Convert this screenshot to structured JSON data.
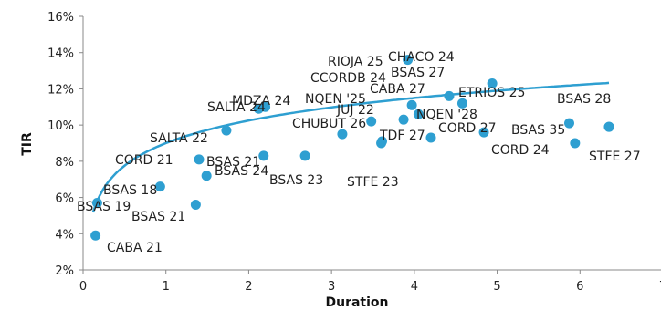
{
  "chart_data": {
    "type": "scatter",
    "title": "",
    "xlabel": "Duration",
    "ylabel": "TIR",
    "xlim": [
      0,
      7
    ],
    "ylim": [
      2,
      16
    ],
    "xticks": [
      0,
      1,
      2,
      3,
      4,
      5,
      6,
      7
    ],
    "yticks": [
      2,
      4,
      6,
      8,
      10,
      12,
      14,
      16
    ],
    "xtick_labels": [
      "0",
      "1",
      "2",
      "3",
      "4",
      "5",
      "6",
      "7"
    ],
    "ytick_labels": [
      "2%",
      "4%",
      "6%",
      "8%",
      "10%",
      "12%",
      "14%",
      "16%"
    ],
    "grid": false,
    "legend": "none",
    "point_color": "#2e9fd1",
    "trend_color": "#2e9fd1",
    "trendline": {
      "type": "logarithmic",
      "a": 1.8,
      "b": 9.0
    },
    "points": [
      {
        "label": "CABA 21",
        "x": 0.15,
        "y": 3.9
      },
      {
        "label": "BSAS 19",
        "x": 0.17,
        "y": 5.7
      },
      {
        "label": "BSAS 18",
        "x": 0.93,
        "y": 6.6
      },
      {
        "label": "BSAS 21",
        "x": 1.36,
        "y": 5.6
      },
      {
        "label": "CORD 21",
        "x": 1.4,
        "y": 8.1
      },
      {
        "label": "BSAS 24",
        "x": 1.49,
        "y": 7.2
      },
      {
        "label": "SALTA 22",
        "x": 1.73,
        "y": 9.7
      },
      {
        "label": "SALTA 24",
        "x": 2.12,
        "y": 10.9
      },
      {
        "label": "BSAS 21",
        "x": 2.18,
        "y": 8.3
      },
      {
        "label": "BSAS 23",
        "x": 2.68,
        "y": 8.3
      },
      {
        "label": "MDZA 24",
        "x": 2.2,
        "y": 11.0
      },
      {
        "label": "CHUBUT 26",
        "x": 3.13,
        "y": 9.5
      },
      {
        "label": "JUJ 22",
        "x": 3.48,
        "y": 10.2
      },
      {
        "label": "NQEN '25",
        "x": 3.61,
        "y": 9.1
      },
      {
        "label": "STFE 23",
        "x": 3.6,
        "y": 9.0
      },
      {
        "label": "TDF 27",
        "x": 3.87,
        "y": 10.3
      },
      {
        "label": "RIOJA 25",
        "x": 3.92,
        "y": 13.6
      },
      {
        "label": "CCORDB 24",
        "x": 3.97,
        "y": 11.1
      },
      {
        "label": "CHACO 24",
        "x": 4.05,
        "y": 10.6
      },
      {
        "label": "BSAS 27",
        "x": 4.2,
        "y": 9.3
      },
      {
        "label": "CABA 27",
        "x": 4.42,
        "y": 11.6
      },
      {
        "label": "NQEN '28",
        "x": 4.58,
        "y": 11.2
      },
      {
        "label": "CORD 27",
        "x": 4.84,
        "y": 9.6
      },
      {
        "label": "ETRIOS 25",
        "x": 4.94,
        "y": 12.3
      },
      {
        "label": "BSAS 35",
        "x": 5.87,
        "y": 10.1
      },
      {
        "label": "CORD 24",
        "x": 5.94,
        "y": 9.0
      },
      {
        "label": "BSAS 28",
        "x": 6.35,
        "y": 9.9
      },
      {
        "label": "STFE 27",
        "x": 6.35,
        "y": 9.9
      }
    ],
    "labels": [
      {
        "text": "CABA 21"
      },
      {
        "text": "BSAS 19"
      },
      {
        "text": "BSAS 18"
      },
      {
        "text": "BSAS 21"
      },
      {
        "text": "CORD 21"
      },
      {
        "text": "BSAS 21"
      },
      {
        "text": "BSAS 24"
      },
      {
        "text": "SALTA 22"
      },
      {
        "text": "SALTA 24"
      },
      {
        "text": "MDZA 24"
      },
      {
        "text": "BSAS 23"
      },
      {
        "text": "NQEN '25"
      },
      {
        "text": "CHUBUT 26"
      },
      {
        "text": "JUJ 22"
      },
      {
        "text": "STFE 23"
      },
      {
        "text": "TDF 27"
      },
      {
        "text": "RIOJA 25"
      },
      {
        "text": "CHACO 24"
      },
      {
        "text": "CCORDB 24"
      },
      {
        "text": "BSAS 27"
      },
      {
        "text": "CABA 27"
      },
      {
        "text": "NQEN '28"
      },
      {
        "text": "ETRIOS 25"
      },
      {
        "text": "CORD 27"
      },
      {
        "text": "BSAS 35"
      },
      {
        "text": "CORD 24"
      },
      {
        "text": "BSAS 28"
      },
      {
        "text": "STFE 27"
      }
    ]
  }
}
